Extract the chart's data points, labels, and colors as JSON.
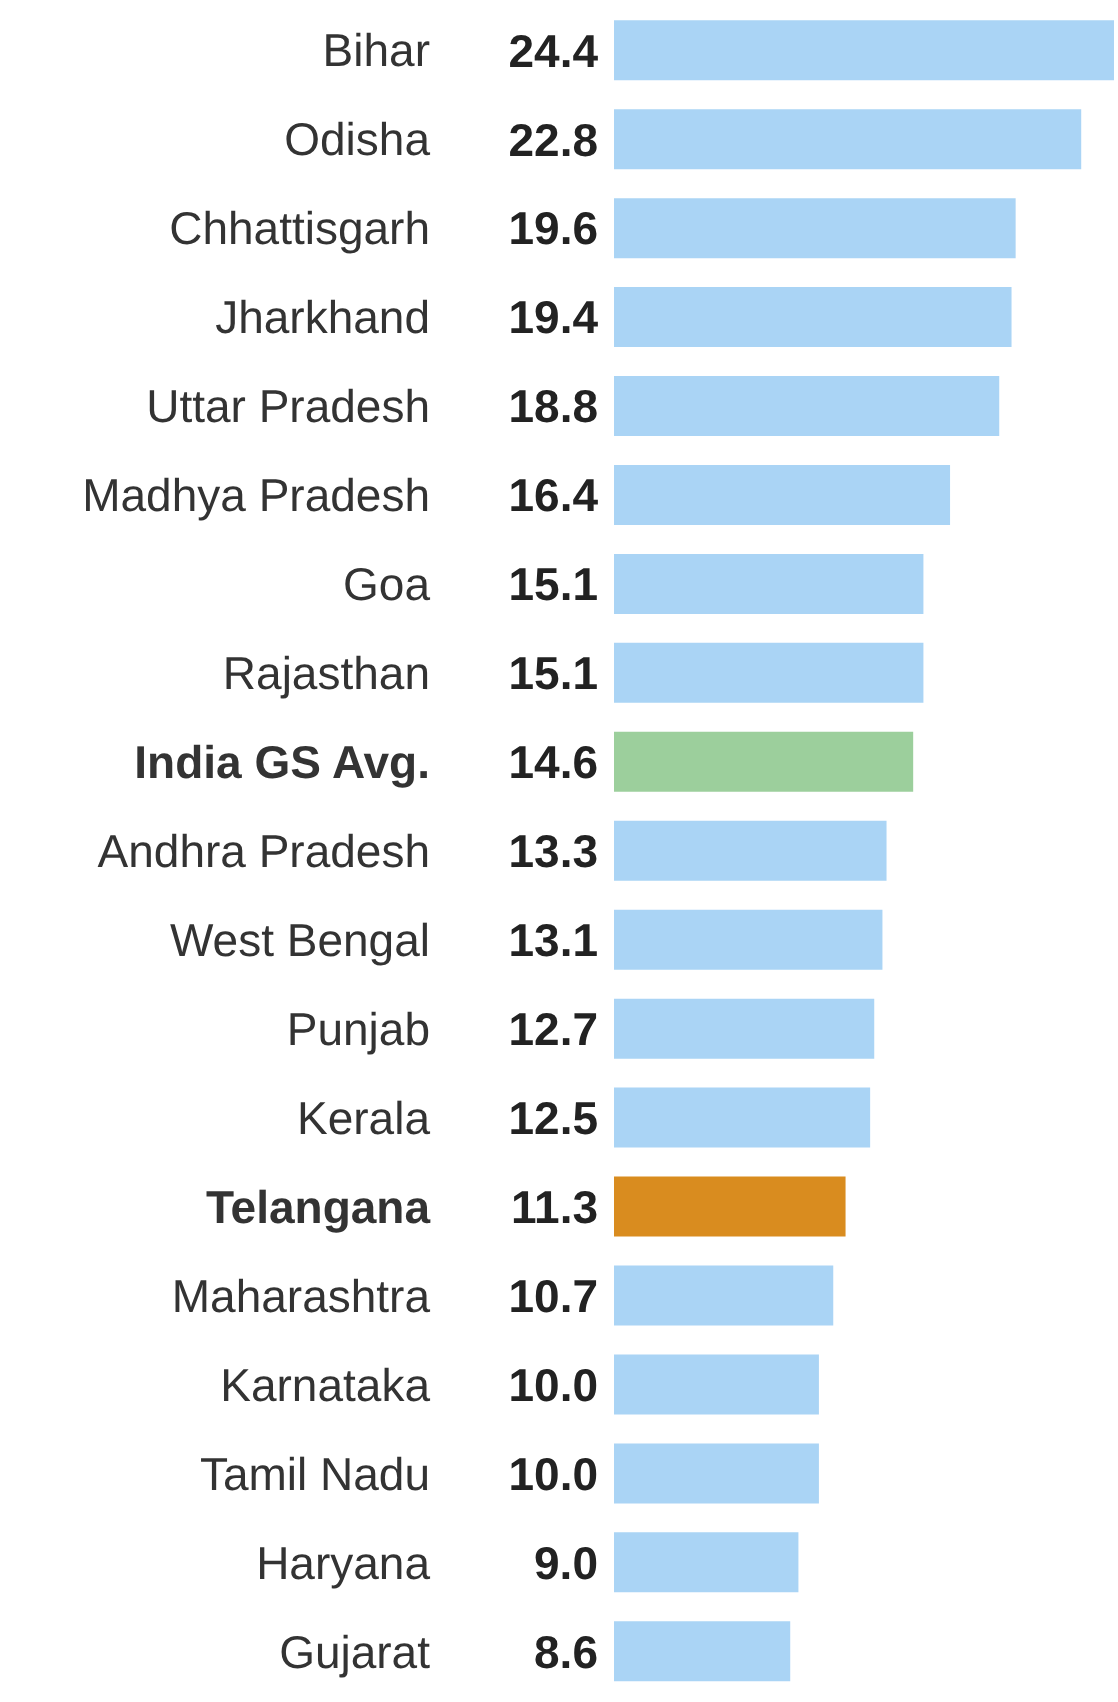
{
  "chart_data": {
    "type": "bar",
    "orientation": "horizontal",
    "value_labels": [
      "24.4",
      "22.8",
      "19.6",
      "19.4",
      "18.8",
      "16.4",
      "15.1",
      "15.1",
      "14.6",
      "13.3",
      "13.1",
      "12.7",
      "12.5",
      "11.3",
      "10.7",
      "10.0",
      "10.0",
      "9.0",
      "8.6"
    ],
    "categories": [
      "Bihar",
      "Odisha",
      "Chhattisgarh",
      "Jharkhand",
      "Uttar Pradesh",
      "Madhya Pradesh",
      "Goa",
      "Rajasthan",
      "India GS Avg.",
      "Andhra Pradesh",
      "West Bengal",
      "Punjab",
      "Kerala",
      "Telangana",
      "Maharashtra",
      "Karnataka",
      "Tamil Nadu",
      "Haryana",
      "Gujarat"
    ],
    "values": [
      24.4,
      22.8,
      19.6,
      19.4,
      18.8,
      16.4,
      15.1,
      15.1,
      14.6,
      13.3,
      13.1,
      12.7,
      12.5,
      11.3,
      10.7,
      10.0,
      10.0,
      9.0,
      8.6
    ],
    "colors": [
      "#aad4f5",
      "#aad4f5",
      "#aad4f5",
      "#aad4f5",
      "#aad4f5",
      "#aad4f5",
      "#aad4f5",
      "#aad4f5",
      "#9ccf9c",
      "#aad4f5",
      "#aad4f5",
      "#aad4f5",
      "#aad4f5",
      "#d98c1f",
      "#aad4f5",
      "#aad4f5",
      "#aad4f5",
      "#aad4f5",
      "#aad4f5"
    ]
  }
}
